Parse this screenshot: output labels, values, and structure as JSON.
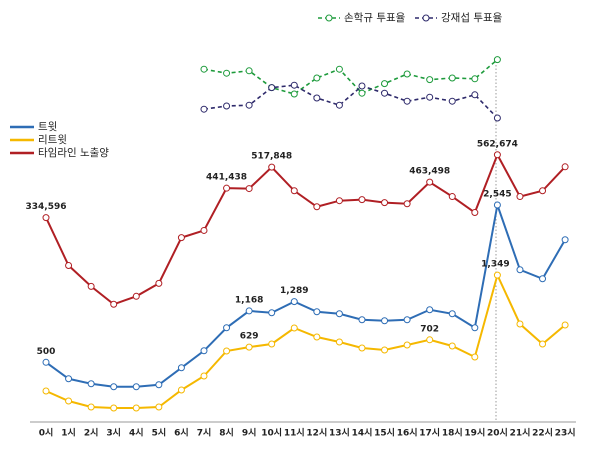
{
  "chart_data": [
    {
      "type": "line",
      "dashed": true,
      "ylim": [
        0,
        10
      ],
      "series": [
        {
          "name": "손학규 투표율",
          "color": "#1e9b3c",
          "values": [
            null,
            null,
            null,
            null,
            null,
            null,
            null,
            7.6,
            7.1,
            7.4,
            5.3,
            4.5,
            6.5,
            7.6,
            4.6,
            5.8,
            7.0,
            6.3,
            6.5,
            6.4,
            8.8,
            null,
            null,
            null
          ]
        },
        {
          "name": "강재섭 투표율",
          "color": "#2e2a6b",
          "values": [
            null,
            null,
            null,
            null,
            null,
            null,
            null,
            2.6,
            3.0,
            3.1,
            5.3,
            5.6,
            4.0,
            3.1,
            5.5,
            4.6,
            3.6,
            4.1,
            3.6,
            4.4,
            1.5,
            null,
            null,
            null
          ]
        }
      ]
    },
    {
      "type": "line",
      "categories": [
        "0시",
        "1시",
        "2시",
        "3시",
        "4시",
        "5시",
        "6시",
        "7시",
        "8시",
        "9시",
        "10시",
        "11시",
        "12시",
        "13시",
        "14시",
        "15시",
        "16시",
        "17시",
        "18시",
        "19시",
        "20시",
        "21시",
        "22시",
        "23시"
      ],
      "ylim": [
        -400000,
        580000
      ],
      "series": [
        {
          "name": "타임라인 노출양",
          "color": "#b01f24",
          "values": [
            334596,
            160800,
            85000,
            20000,
            49000,
            96000,
            262000,
            288000,
            441438,
            440000,
            517848,
            432000,
            374000,
            396000,
            400000,
            389000,
            385000,
            463498,
            411000,
            353000,
            562674,
            411000,
            432000,
            519000
          ],
          "value_labels": [
            "334,596",
            null,
            null,
            null,
            null,
            null,
            null,
            null,
            "441,438",
            null,
            "517,848",
            null,
            null,
            null,
            null,
            null,
            null,
            "463,498",
            null,
            null,
            "562,674",
            null,
            null,
            null
          ]
        }
      ]
    },
    {
      "type": "line",
      "ylim": [
        -250,
        3260
      ],
      "y2lim": [
        -100,
        2600
      ],
      "series": [
        {
          "name": "트윗",
          "color": "#2e6db5",
          "values": [
            500,
            286,
            221,
            182,
            182,
            208,
            429,
            650,
            949,
            1168,
            1144,
            1289,
            1157,
            1131,
            1053,
            1040,
            1053,
            1183,
            1131,
            949,
            2545,
            1703,
            1586,
            2093
          ],
          "value_labels": [
            "500",
            null,
            null,
            null,
            null,
            null,
            null,
            null,
            null,
            "1,168",
            null,
            "1,289",
            null,
            null,
            null,
            null,
            null,
            null,
            null,
            null,
            "2,545",
            null,
            null,
            null
          ]
        },
        {
          "name": "리트윗",
          "color": "#f5b800",
          "axis": "y2",
          "values": [
            190,
            90,
            30,
            20,
            20,
            30,
            200,
            340,
            590,
            629,
            660,
            820,
            730,
            680,
            620,
            600,
            650,
            702,
            640,
            530,
            1349,
            860,
            660,
            850
          ],
          "value_labels": [
            null,
            null,
            null,
            null,
            null,
            null,
            null,
            null,
            null,
            "629",
            null,
            null,
            null,
            null,
            null,
            null,
            null,
            "702",
            null,
            null,
            "1,349",
            null,
            null,
            null
          ]
        }
      ]
    }
  ]
}
